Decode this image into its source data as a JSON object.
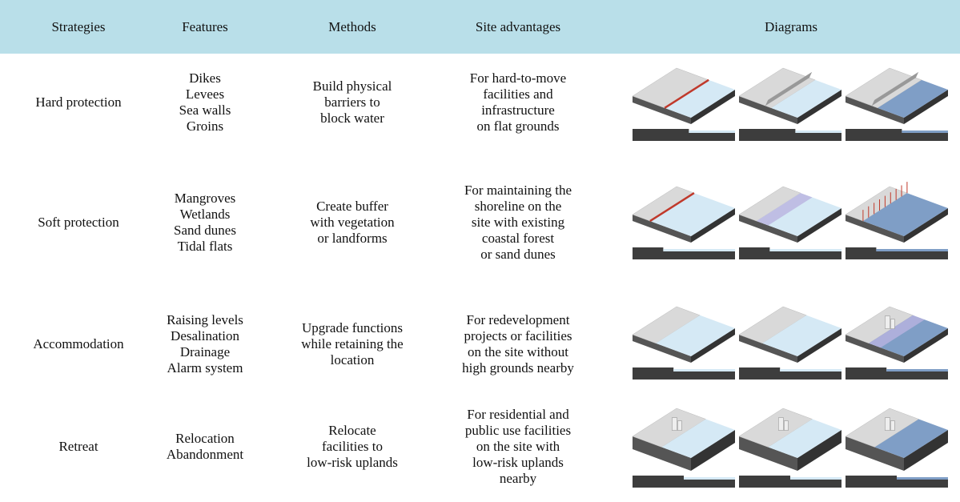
{
  "header": [
    "Strategies",
    "Features",
    "Methods",
    "Site advantages",
    "Diagrams"
  ],
  "rows": [
    {
      "strategy": "Hard protection",
      "features": [
        "Dikes",
        "Levees",
        "Sea walls",
        "Groins"
      ],
      "methods": [
        "Build physical",
        "barriers to",
        "block water"
      ],
      "advantages": [
        "For hard-to-move",
        "facilities and",
        "infrastructure",
        "on flat grounds"
      ]
    },
    {
      "strategy": "Soft protection",
      "features": [
        "Mangroves",
        "Wetlands",
        "Sand dunes",
        "Tidal flats"
      ],
      "methods": [
        "Create buffer",
        "with vegetation",
        "or landforms"
      ],
      "advantages": [
        "For maintaining the",
        "shoreline on the",
        "site with existing",
        "coastal forest",
        "or sand dunes"
      ]
    },
    {
      "strategy": "Accommodation",
      "features": [
        "Raising levels",
        "Desalination",
        "Drainage",
        "Alarm system"
      ],
      "methods": [
        "Upgrade functions",
        "while retaining the",
        "location"
      ],
      "advantages": [
        "For redevelopment",
        "projects or facilities",
        "on the site without",
        "high grounds nearby"
      ]
    },
    {
      "strategy": "Retreat",
      "features": [
        "Relocation",
        "Abandonment"
      ],
      "methods": [
        "Relocate",
        "facilities to",
        "low-risk uplands"
      ],
      "advantages": [
        "For residential and",
        "public use facilities",
        "on the site with",
        "low-risk uplands",
        "nearby"
      ]
    }
  ]
}
